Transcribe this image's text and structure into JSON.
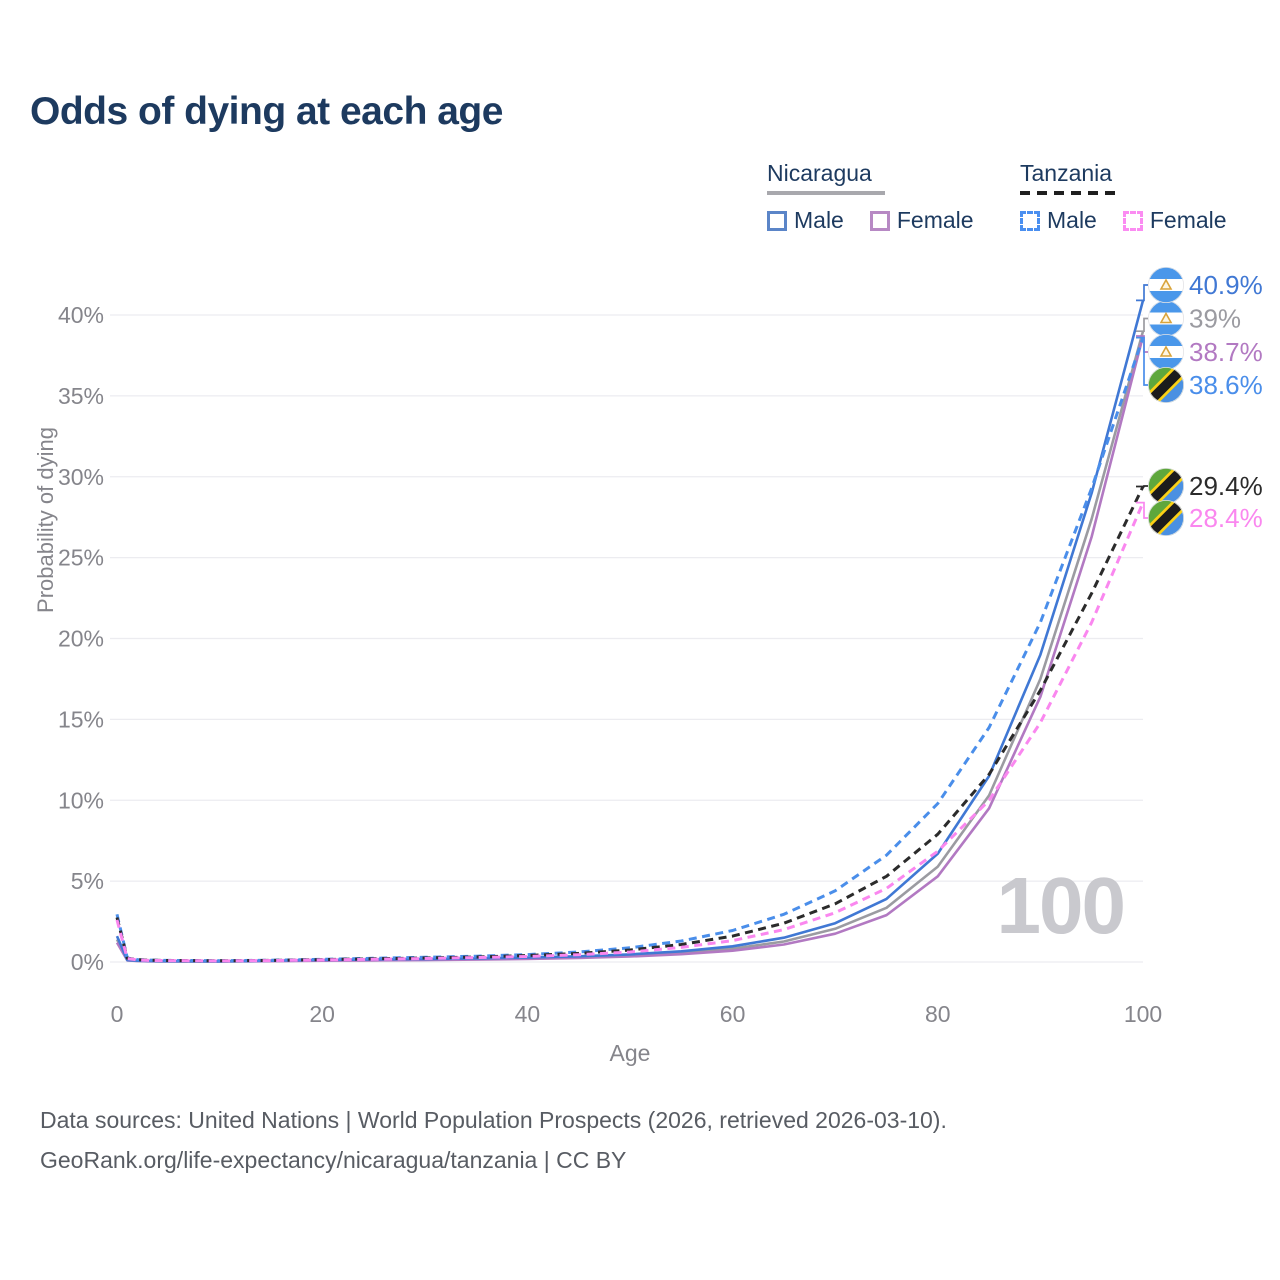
{
  "header": {
    "title": "Odds of dying at each age"
  },
  "legend": {
    "groups": [
      {
        "country": "Nicaragua",
        "line_style": "solid",
        "underline_color": "#a8a8ad",
        "items": [
          {
            "label": "Male",
            "color": "#5b85c8",
            "dashed": false
          },
          {
            "label": "Female",
            "color": "#b789c4",
            "dashed": false
          }
        ]
      },
      {
        "country": "Tanzania",
        "line_style": "dashed",
        "underline_color": "#1f1f1f",
        "items": [
          {
            "label": "Male",
            "color": "#4a8ff0",
            "dashed": true
          },
          {
            "label": "Female",
            "color": "#fb8cf2",
            "dashed": true
          }
        ]
      }
    ]
  },
  "chart_data": {
    "type": "line",
    "title": "Odds of dying at each age",
    "xlabel": "Age",
    "ylabel": "Probability of dying",
    "watermark": "100",
    "xlim": [
      0,
      100
    ],
    "ylim": [
      0,
      42
    ],
    "x_ticks": [
      0,
      20,
      40,
      60,
      80,
      100
    ],
    "y_ticks": [
      "0%",
      "5%",
      "10%",
      "15%",
      "20%",
      "25%",
      "30%",
      "35%",
      "40%"
    ],
    "grid": true,
    "legend_position": "top-right",
    "colors": {
      "nicaragua_male": "#4078d4",
      "nicaragua_both": "#9b9ba1",
      "nicaragua_female": "#b279c2",
      "tanzania_male": "#4a8eea",
      "tanzania_both": "#2b2b2b",
      "tanzania_female": "#fa87ef"
    },
    "series": [
      {
        "id": "nicaragua-both",
        "name": "Nicaragua — Both sexes",
        "country": "Nicaragua",
        "color": "#9b9ba1",
        "dashed": false,
        "end_label": "39%",
        "flag": "nicaragua",
        "points": [
          [
            0,
            1.4
          ],
          [
            1,
            0.11
          ],
          [
            2,
            0.07
          ],
          [
            3,
            0.05
          ],
          [
            5,
            0.04
          ],
          [
            10,
            0.035
          ],
          [
            15,
            0.065
          ],
          [
            20,
            0.1
          ],
          [
            25,
            0.13
          ],
          [
            30,
            0.15
          ],
          [
            35,
            0.18
          ],
          [
            40,
            0.23
          ],
          [
            45,
            0.3
          ],
          [
            50,
            0.4
          ],
          [
            55,
            0.56
          ],
          [
            60,
            0.82
          ],
          [
            65,
            1.27
          ],
          [
            70,
            2.05
          ],
          [
            75,
            3.35
          ],
          [
            80,
            5.9
          ],
          [
            85,
            10.3
          ],
          [
            90,
            17.5
          ],
          [
            95,
            27.4
          ],
          [
            100,
            39.0
          ]
        ]
      },
      {
        "id": "nicaragua-female",
        "name": "Nicaragua — Female",
        "country": "Nicaragua",
        "color": "#b279c2",
        "dashed": false,
        "end_label": "38.7%",
        "flag": "nicaragua",
        "points": [
          [
            0,
            1.2
          ],
          [
            1,
            0.1
          ],
          [
            2,
            0.06
          ],
          [
            3,
            0.045
          ],
          [
            5,
            0.035
          ],
          [
            10,
            0.03
          ],
          [
            15,
            0.05
          ],
          [
            20,
            0.08
          ],
          [
            25,
            0.1
          ],
          [
            30,
            0.12
          ],
          [
            35,
            0.15
          ],
          [
            40,
            0.19
          ],
          [
            45,
            0.25
          ],
          [
            50,
            0.34
          ],
          [
            55,
            0.48
          ],
          [
            60,
            0.7
          ],
          [
            65,
            1.08
          ],
          [
            70,
            1.75
          ],
          [
            75,
            2.9
          ],
          [
            80,
            5.3
          ],
          [
            85,
            9.5
          ],
          [
            90,
            16.4
          ],
          [
            95,
            26.3
          ],
          [
            100,
            38.7
          ]
        ]
      },
      {
        "id": "nicaragua-male",
        "name": "Nicaragua — Male",
        "country": "Nicaragua",
        "color": "#4078d4",
        "dashed": false,
        "end_label": "40.9%",
        "flag": "nicaragua",
        "points": [
          [
            0,
            1.6
          ],
          [
            1,
            0.12
          ],
          [
            2,
            0.08
          ],
          [
            3,
            0.06
          ],
          [
            5,
            0.05
          ],
          [
            10,
            0.04
          ],
          [
            15,
            0.08
          ],
          [
            20,
            0.13
          ],
          [
            25,
            0.16
          ],
          [
            30,
            0.18
          ],
          [
            35,
            0.22
          ],
          [
            40,
            0.27
          ],
          [
            45,
            0.35
          ],
          [
            50,
            0.47
          ],
          [
            55,
            0.66
          ],
          [
            60,
            0.97
          ],
          [
            65,
            1.5
          ],
          [
            70,
            2.4
          ],
          [
            75,
            3.9
          ],
          [
            80,
            6.7
          ],
          [
            85,
            11.5
          ],
          [
            90,
            19.0
          ],
          [
            95,
            29.0
          ],
          [
            100,
            40.9
          ]
        ]
      },
      {
        "id": "tanzania-male",
        "name": "Tanzania — Male",
        "country": "Tanzania",
        "color": "#4a8eea",
        "dashed": true,
        "end_label": "38.6%",
        "flag": "tanzania",
        "points": [
          [
            0,
            2.95
          ],
          [
            1,
            0.25
          ],
          [
            2,
            0.15
          ],
          [
            3,
            0.12
          ],
          [
            5,
            0.1
          ],
          [
            10,
            0.08
          ],
          [
            15,
            0.11
          ],
          [
            20,
            0.17
          ],
          [
            25,
            0.23
          ],
          [
            30,
            0.29
          ],
          [
            35,
            0.36
          ],
          [
            40,
            0.46
          ],
          [
            45,
            0.62
          ],
          [
            50,
            0.88
          ],
          [
            55,
            1.3
          ],
          [
            60,
            1.95
          ],
          [
            65,
            2.95
          ],
          [
            70,
            4.4
          ],
          [
            75,
            6.6
          ],
          [
            80,
            9.8
          ],
          [
            85,
            14.5
          ],
          [
            90,
            21.0
          ],
          [
            95,
            29.3
          ],
          [
            100,
            38.6
          ]
        ]
      },
      {
        "id": "tanzania-both",
        "name": "Tanzania — Both sexes",
        "country": "Tanzania",
        "color": "#2b2b2b",
        "dashed": true,
        "end_label": "29.4%",
        "flag": "tanzania",
        "points": [
          [
            0,
            2.75
          ],
          [
            1,
            0.23
          ],
          [
            2,
            0.14
          ],
          [
            3,
            0.11
          ],
          [
            5,
            0.09
          ],
          [
            10,
            0.075
          ],
          [
            15,
            0.1
          ],
          [
            20,
            0.15
          ],
          [
            25,
            0.2
          ],
          [
            30,
            0.25
          ],
          [
            35,
            0.31
          ],
          [
            40,
            0.4
          ],
          [
            45,
            0.53
          ],
          [
            50,
            0.74
          ],
          [
            55,
            1.08
          ],
          [
            60,
            1.6
          ],
          [
            65,
            2.4
          ],
          [
            70,
            3.6
          ],
          [
            75,
            5.3
          ],
          [
            80,
            7.9
          ],
          [
            85,
            11.6
          ],
          [
            90,
            16.8
          ],
          [
            95,
            22.8
          ],
          [
            100,
            29.4
          ]
        ]
      },
      {
        "id": "tanzania-female",
        "name": "Tanzania — Female",
        "country": "Tanzania",
        "color": "#fa87ef",
        "dashed": true,
        "end_label": "28.4%",
        "flag": "tanzania",
        "points": [
          [
            0,
            2.6
          ],
          [
            1,
            0.21
          ],
          [
            2,
            0.13
          ],
          [
            3,
            0.1
          ],
          [
            5,
            0.085
          ],
          [
            10,
            0.07
          ],
          [
            15,
            0.09
          ],
          [
            20,
            0.13
          ],
          [
            25,
            0.17
          ],
          [
            30,
            0.215
          ],
          [
            35,
            0.27
          ],
          [
            40,
            0.34
          ],
          [
            45,
            0.45
          ],
          [
            50,
            0.62
          ],
          [
            55,
            0.9
          ],
          [
            60,
            1.32
          ],
          [
            65,
            2.0
          ],
          [
            70,
            3.05
          ],
          [
            75,
            4.55
          ],
          [
            80,
            6.85
          ],
          [
            85,
            10.0
          ],
          [
            90,
            14.8
          ],
          [
            95,
            21.0
          ],
          [
            100,
            28.4
          ]
        ]
      }
    ]
  },
  "footer": {
    "line1": "Data sources: United Nations | World Population Prospects (2026, retrieved 2026-03-10).",
    "line2": "GeoRank.org/life-expectancy/nicaragua/tanzania | CC BY"
  }
}
